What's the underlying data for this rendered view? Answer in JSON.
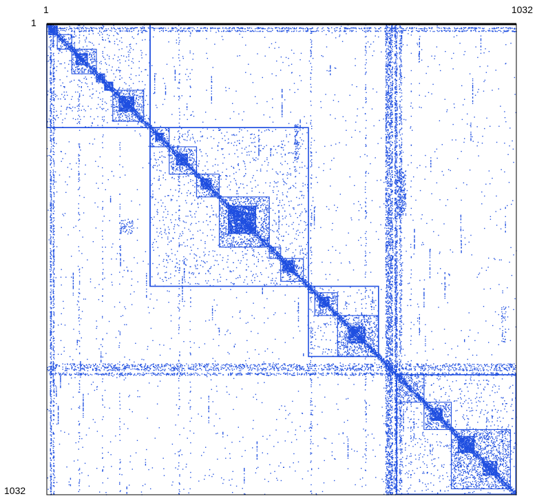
{
  "chart_data": {
    "type": "heatmap",
    "description_kind": "sparse-matrix-spy-plot",
    "title": "",
    "xlabel": "",
    "ylabel": "",
    "n": 1032,
    "axis_labels": {
      "x_start": "1",
      "x_end": "1032",
      "y_start": "1",
      "y_end": "1032"
    },
    "xlim": [
      1,
      1032
    ],
    "ylim": [
      1,
      1032
    ],
    "colors": {
      "marks": "#1f4fe0",
      "frame_top": "#000000",
      "frame": "#000000",
      "background": "#ffffff"
    },
    "blocks": [
      {
        "level": 1,
        "start": 1,
        "end": 228
      },
      {
        "level": 1,
        "start": 228,
        "end": 576
      },
      {
        "level": 1,
        "start": 576,
        "end": 730
      },
      {
        "level": 1,
        "start": 770,
        "end": 1032
      },
      {
        "level": 2,
        "start": 24,
        "end": 56
      },
      {
        "level": 2,
        "start": 56,
        "end": 110
      },
      {
        "level": 2,
        "start": 146,
        "end": 214
      },
      {
        "level": 2,
        "start": 228,
        "end": 270
      },
      {
        "level": 2,
        "start": 270,
        "end": 330
      },
      {
        "level": 2,
        "start": 330,
        "end": 380
      },
      {
        "level": 2,
        "start": 380,
        "end": 490
      },
      {
        "level": 2,
        "start": 490,
        "end": 515
      },
      {
        "level": 2,
        "start": 515,
        "end": 565
      },
      {
        "level": 2,
        "start": 576,
        "end": 590
      },
      {
        "level": 2,
        "start": 590,
        "end": 640
      },
      {
        "level": 2,
        "start": 640,
        "end": 730
      },
      {
        "level": 2,
        "start": 770,
        "end": 830
      },
      {
        "level": 2,
        "start": 830,
        "end": 890
      },
      {
        "level": 2,
        "start": 890,
        "end": 1020
      },
      {
        "level": 3,
        "start": 5,
        "end": 24
      },
      {
        "level": 3,
        "start": 66,
        "end": 90
      },
      {
        "level": 3,
        "start": 110,
        "end": 128
      },
      {
        "level": 3,
        "start": 128,
        "end": 146
      },
      {
        "level": 3,
        "start": 160,
        "end": 192
      },
      {
        "level": 3,
        "start": 240,
        "end": 255
      },
      {
        "level": 3,
        "start": 286,
        "end": 310
      },
      {
        "level": 3,
        "start": 340,
        "end": 362
      },
      {
        "level": 3,
        "start": 400,
        "end": 460
      },
      {
        "level": 3,
        "start": 520,
        "end": 545
      },
      {
        "level": 3,
        "start": 600,
        "end": 620
      },
      {
        "level": 3,
        "start": 665,
        "end": 700
      },
      {
        "level": 3,
        "start": 845,
        "end": 870
      },
      {
        "level": 3,
        "start": 905,
        "end": 940
      },
      {
        "level": 3,
        "start": 960,
        "end": 990
      }
    ],
    "dense_columns": [
      {
        "start": 8,
        "end": 10,
        "density": 0.55
      },
      {
        "start": 14,
        "end": 16,
        "density": 0.35
      },
      {
        "start": 70,
        "end": 72,
        "density": 0.12
      },
      {
        "start": 122,
        "end": 123,
        "density": 0.1
      },
      {
        "start": 160,
        "end": 161,
        "density": 0.08
      },
      {
        "start": 290,
        "end": 292,
        "density": 0.12
      },
      {
        "start": 315,
        "end": 316,
        "density": 0.08
      },
      {
        "start": 580,
        "end": 582,
        "density": 0.15
      },
      {
        "start": 700,
        "end": 702,
        "density": 0.12
      },
      {
        "start": 745,
        "end": 760,
        "density": 0.35
      },
      {
        "start": 765,
        "end": 770,
        "density": 0.45
      },
      {
        "start": 775,
        "end": 780,
        "density": 0.25
      },
      {
        "start": 800,
        "end": 801,
        "density": 0.08
      }
    ],
    "dense_rows": [
      {
        "start": 8,
        "end": 10,
        "density": 0.4
      },
      {
        "start": 14,
        "end": 16,
        "density": 0.3
      },
      {
        "start": 745,
        "end": 760,
        "density": 0.2
      },
      {
        "start": 765,
        "end": 770,
        "density": 0.3
      }
    ],
    "clusters": [
      {
        "rows": [
          320,
          420
        ],
        "cols": [
          770,
          790
        ],
        "density": 0.45
      },
      {
        "rows": [
          620,
          700
        ],
        "cols": [
          1000,
          1010
        ],
        "density": 0.2
      },
      {
        "rows": [
          220,
          300
        ],
        "cols": [
          545,
          555
        ],
        "density": 0.35
      },
      {
        "rows": [
          430,
          460
        ],
        "cols": [
          160,
          190
        ],
        "density": 0.25
      }
    ],
    "random_fill_density": 0.0016,
    "near_diagonal_band": 8,
    "seed": 20240531
  }
}
